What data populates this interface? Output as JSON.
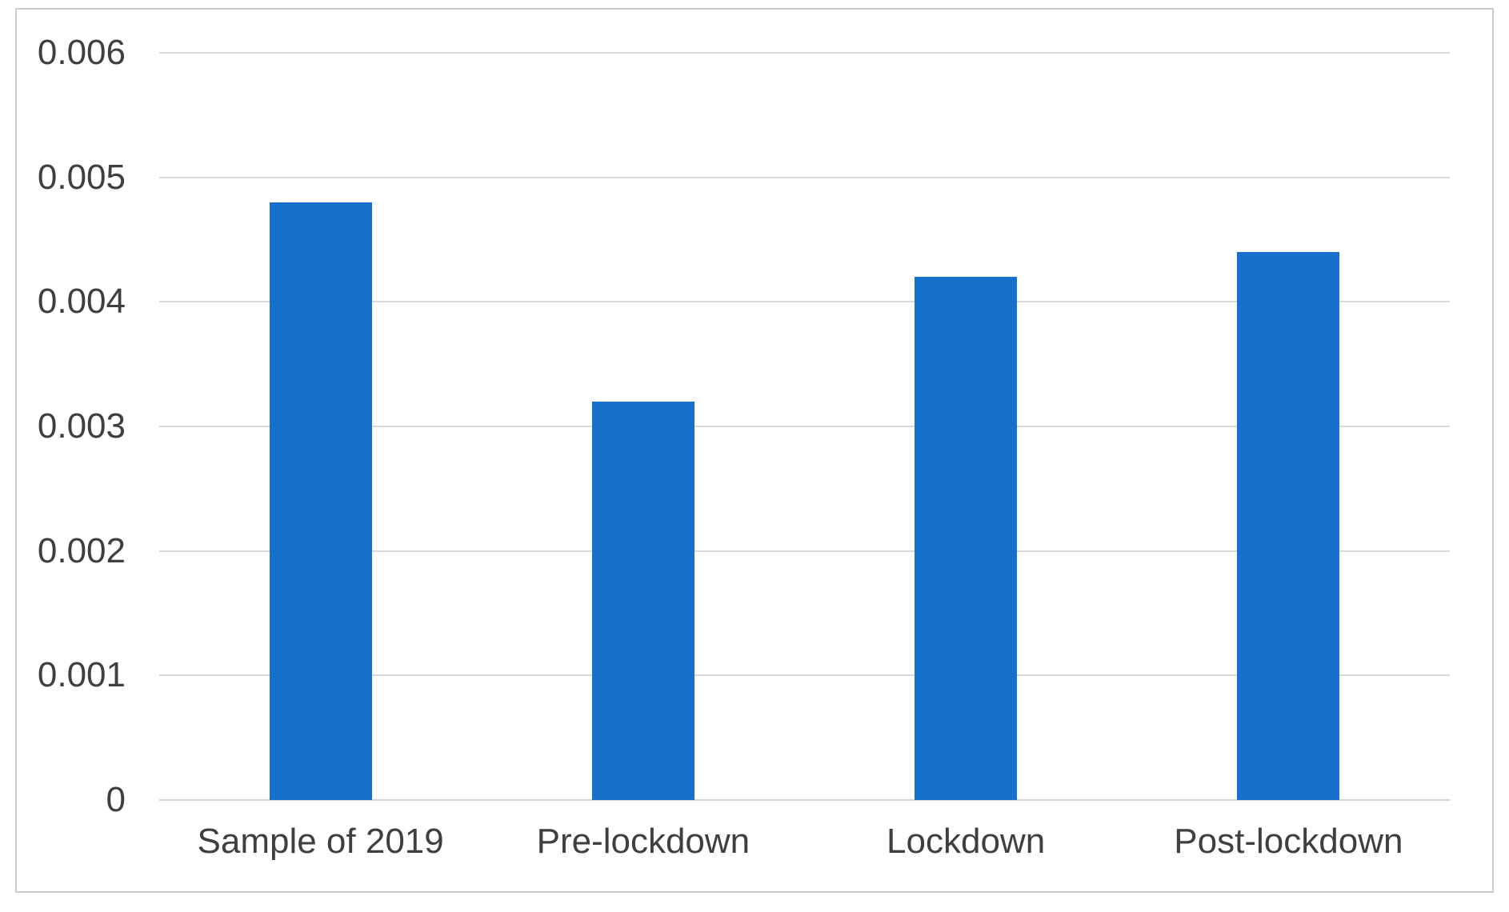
{
  "chart_data": {
    "type": "bar",
    "categories": [
      "Sample of 2019",
      "Pre-lockdown",
      "Lockdown",
      "Post-lockdown"
    ],
    "values": [
      0.0048,
      0.0032,
      0.0042,
      0.0044
    ],
    "ylim": [
      0,
      0.006
    ],
    "ytick_labels": [
      "0",
      "0.001",
      "0.002",
      "0.003",
      "0.004",
      "0.005",
      "0.006"
    ],
    "grid": true,
    "legend": false,
    "colors": {
      "bar": "#1571cb",
      "gridline": "#d9d9d9",
      "axis_baseline": "#d2d2d2",
      "tick_label": "#3f3f3f",
      "frame_border": "#c9cdd2",
      "background": "#ffffff"
    }
  }
}
